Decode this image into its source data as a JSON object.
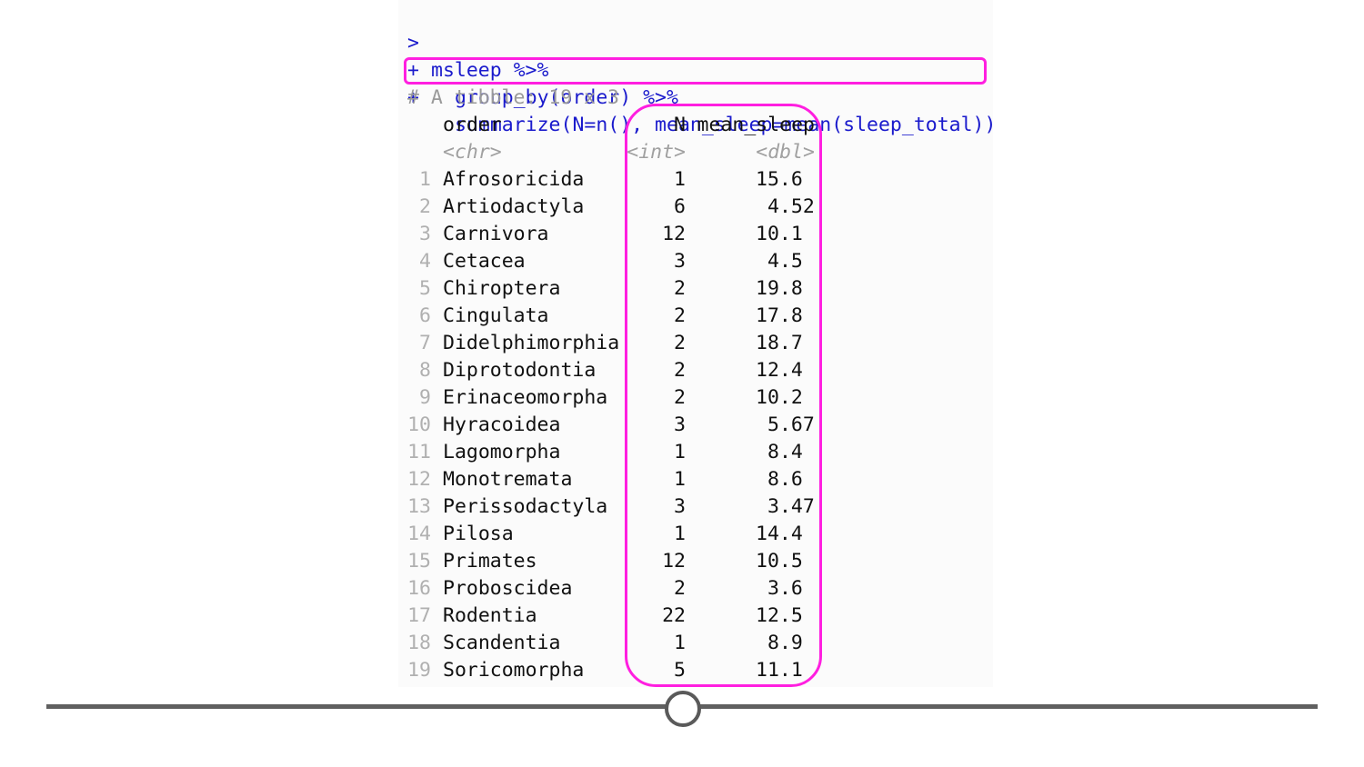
{
  "console": {
    "command_lines": [
      {
        "prompt": ">",
        "text": "msleep %>%"
      },
      {
        "prompt": "+",
        "text": "group_by(order) %>%"
      },
      {
        "prompt": "+",
        "text": "summarize(N=n(), mean_sleep=mean(sleep_total))"
      }
    ],
    "tibble_comment": "# A tibble: 19 x 3",
    "columns": [
      {
        "name": "order",
        "type": "<chr>"
      },
      {
        "name": "N",
        "type": "<int>"
      },
      {
        "name": "mean_sleep",
        "type": "<dbl>"
      }
    ],
    "rows": [
      {
        "num": "1",
        "order": "Afrosoricida",
        "n": "1",
        "mean_sleep": "15.6"
      },
      {
        "num": "2",
        "order": "Artiodactyla",
        "n": "6",
        "mean_sleep": "4.52"
      },
      {
        "num": "3",
        "order": "Carnivora",
        "n": "12",
        "mean_sleep": "10.1"
      },
      {
        "num": "4",
        "order": "Cetacea",
        "n": "3",
        "mean_sleep": "4.5"
      },
      {
        "num": "5",
        "order": "Chiroptera",
        "n": "2",
        "mean_sleep": "19.8"
      },
      {
        "num": "6",
        "order": "Cingulata",
        "n": "2",
        "mean_sleep": "17.8"
      },
      {
        "num": "7",
        "order": "Didelphimorphia",
        "n": "2",
        "mean_sleep": "18.7"
      },
      {
        "num": "8",
        "order": "Diprotodontia",
        "n": "2",
        "mean_sleep": "12.4"
      },
      {
        "num": "9",
        "order": "Erinaceomorpha",
        "n": "2",
        "mean_sleep": "10.2"
      },
      {
        "num": "10",
        "order": "Hyracoidea",
        "n": "3",
        "mean_sleep": "5.67"
      },
      {
        "num": "11",
        "order": "Lagomorpha",
        "n": "1",
        "mean_sleep": "8.4"
      },
      {
        "num": "12",
        "order": "Monotremata",
        "n": "1",
        "mean_sleep": "8.6"
      },
      {
        "num": "13",
        "order": "Perissodactyla",
        "n": "3",
        "mean_sleep": "3.47"
      },
      {
        "num": "14",
        "order": "Pilosa",
        "n": "1",
        "mean_sleep": "14.4"
      },
      {
        "num": "15",
        "order": "Primates",
        "n": "12",
        "mean_sleep": "10.5"
      },
      {
        "num": "16",
        "order": "Proboscidea",
        "n": "2",
        "mean_sleep": "3.6"
      },
      {
        "num": "17",
        "order": "Rodentia",
        "n": "22",
        "mean_sleep": "12.5"
      },
      {
        "num": "18",
        "order": "Scandentia",
        "n": "1",
        "mean_sleep": "8.9"
      },
      {
        "num": "19",
        "order": "Soricomorpha",
        "n": "5",
        "mean_sleep": "11.1"
      }
    ]
  },
  "colors": {
    "command": "#1a1acc",
    "highlight": "#ff1fe0",
    "comment": "#9a9a9a"
  },
  "player": {
    "progress": 0.5
  }
}
